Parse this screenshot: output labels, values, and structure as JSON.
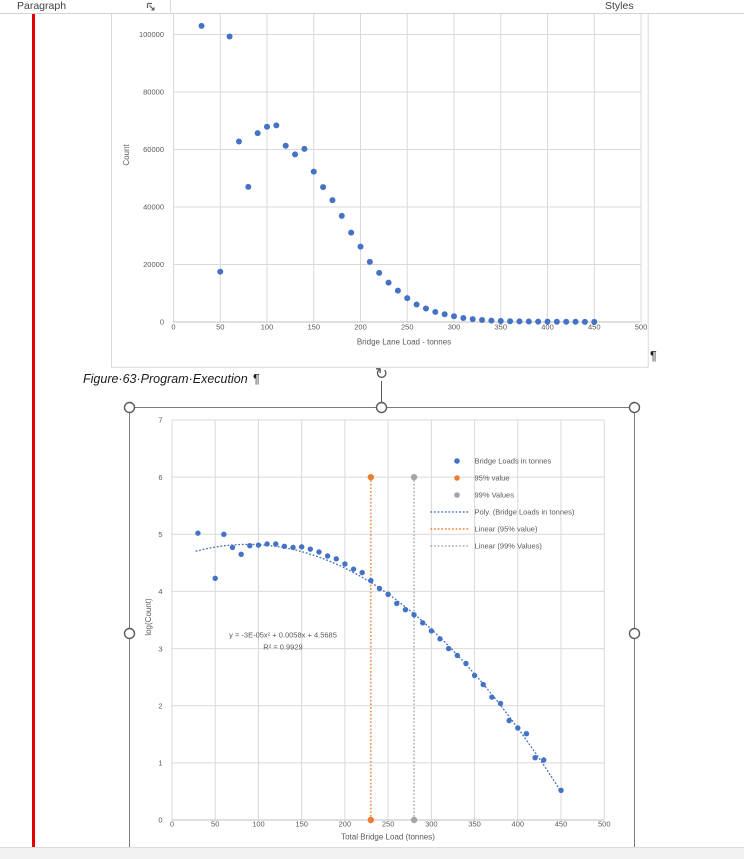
{
  "ribbon": {
    "paragraph_group_label": "Paragraph",
    "styles_group_label": "Styles"
  },
  "document": {
    "caption_text": "Figure·63·Program·Execution",
    "caption_pilcrow": "¶",
    "chart1_trailing_pilcrow": "¶"
  },
  "colors": {
    "accent_blue": "#4472C4",
    "accent_orange": "#ED7D31",
    "accent_gray": "#A5A5A5",
    "gridline": "#D9D9D9",
    "axis_line": "#BFBFBF",
    "axis_text": "#595959",
    "tracked_change_line": "#E40000",
    "selection_handle": "#595959",
    "selection_border": "#7A7A7A"
  },
  "chart_data": [
    {
      "type": "scatter",
      "title": "",
      "xlabel": "Bridge Lane Load - tonnes",
      "ylabel": "Count",
      "xlim": [
        0,
        500
      ],
      "ylim": [
        0,
        110000
      ],
      "xticks": [
        0,
        50,
        100,
        150,
        200,
        250,
        300,
        350,
        400,
        450,
        500
      ],
      "yticks": [
        0,
        20000,
        40000,
        60000,
        80000,
        100000
      ],
      "grid": true,
      "series": [
        {
          "name": "Count",
          "color": "#4472C4",
          "points": [
            [
              30,
              103000
            ],
            [
              50,
              17500
            ],
            [
              60,
              99300
            ],
            [
              70,
              62800
            ],
            [
              80,
              47000
            ],
            [
              90,
              65700
            ],
            [
              100,
              67900
            ],
            [
              110,
              68400
            ],
            [
              120,
              61300
            ],
            [
              130,
              58300
            ],
            [
              140,
              60200
            ],
            [
              150,
              52300
            ],
            [
              160,
              46900
            ],
            [
              170,
              42400
            ],
            [
              180,
              36900
            ],
            [
              190,
              31100
            ],
            [
              200,
              26200
            ],
            [
              210,
              20900
            ],
            [
              220,
              17100
            ],
            [
              230,
              13700
            ],
            [
              240,
              10900
            ],
            [
              250,
              8300
            ],
            [
              260,
              6100
            ],
            [
              270,
              4700
            ],
            [
              280,
              3500
            ],
            [
              290,
              2700
            ],
            [
              300,
              2000
            ],
            [
              310,
              1400
            ],
            [
              320,
              1000
            ],
            [
              330,
              700
            ],
            [
              340,
              500
            ],
            [
              350,
              350
            ],
            [
              360,
              260
            ],
            [
              370,
              200
            ],
            [
              380,
              160
            ],
            [
              390,
              130
            ],
            [
              400,
              110
            ],
            [
              410,
              90
            ],
            [
              420,
              80
            ],
            [
              430,
              70
            ],
            [
              440,
              60
            ],
            [
              450,
              50
            ]
          ]
        }
      ]
    },
    {
      "type": "scatter",
      "title": "",
      "xlabel": "Total Bridge Load (tonnes)",
      "ylabel": "log(Count)",
      "xlim": [
        0,
        500
      ],
      "ylim": [
        0,
        7
      ],
      "xticks": [
        0,
        50,
        100,
        150,
        200,
        250,
        300,
        350,
        400,
        450,
        500
      ],
      "yticks": [
        0,
        1,
        2,
        3,
        4,
        5,
        6,
        7
      ],
      "grid": true,
      "series": [
        {
          "name": "Bridge Loads in tonnes",
          "color": "#4472C4",
          "marker_r": 2.7,
          "points": [
            [
              30,
              5.02
            ],
            [
              50,
              4.23
            ],
            [
              60,
              5.0
            ],
            [
              70,
              4.77
            ],
            [
              80,
              4.65
            ],
            [
              90,
              4.8
            ],
            [
              100,
              4.81
            ],
            [
              110,
              4.83
            ],
            [
              120,
              4.83
            ],
            [
              130,
              4.79
            ],
            [
              140,
              4.77
            ],
            [
              150,
              4.78
            ],
            [
              160,
              4.74
            ],
            [
              170,
              4.69
            ],
            [
              180,
              4.62
            ],
            [
              190,
              4.57
            ],
            [
              200,
              4.48
            ],
            [
              210,
              4.39
            ],
            [
              220,
              4.33
            ],
            [
              230,
              4.19
            ],
            [
              240,
              4.05
            ],
            [
              250,
              3.95
            ],
            [
              260,
              3.79
            ],
            [
              270,
              3.68
            ],
            [
              280,
              3.59
            ],
            [
              290,
              3.45
            ],
            [
              300,
              3.31
            ],
            [
              310,
              3.17
            ],
            [
              320,
              3.0
            ],
            [
              330,
              2.88
            ],
            [
              340,
              2.74
            ],
            [
              350,
              2.53
            ],
            [
              360,
              2.37
            ],
            [
              370,
              2.15
            ],
            [
              380,
              2.04
            ],
            [
              390,
              1.74
            ],
            [
              400,
              1.61
            ],
            [
              410,
              1.51
            ],
            [
              420,
              1.09
            ],
            [
              430,
              1.05
            ],
            [
              450,
              0.52
            ]
          ]
        },
        {
          "name": "95% value",
          "color": "#ED7D31",
          "marker_r": 3.2,
          "points": [
            [
              230,
              6
            ],
            [
              230,
              0
            ]
          ]
        },
        {
          "name": "99% Values",
          "color": "#A5A5A5",
          "marker_r": 3.2,
          "points": [
            [
              280,
              6
            ],
            [
              280,
              0
            ]
          ]
        }
      ],
      "trendlines": [
        {
          "name": "Poly. (Bridge Loads in tonnes)",
          "color": "#4472C4",
          "style": "dotted",
          "kind": "poly",
          "coeffs": [
            -3.3e-05,
            0.0058,
            4.5685
          ],
          "x_range": [
            28,
            452
          ]
        },
        {
          "name": "Linear (95% value)",
          "color": "#ED7D31",
          "style": "dotted",
          "kind": "vertical",
          "x": 230,
          "y_range": [
            0,
            6
          ]
        },
        {
          "name": "Linear (99% Values)",
          "color": "#A5A5A5",
          "style": "dotted",
          "kind": "vertical",
          "x": 280,
          "y_range": [
            0,
            6
          ]
        }
      ],
      "legend": {
        "position": "inside-top-right",
        "entries": [
          {
            "label": "Bridge Loads in tonnes",
            "color": "#4472C4",
            "icon": "marker"
          },
          {
            "label": "95% value",
            "color": "#ED7D31",
            "icon": "marker"
          },
          {
            "label": "99% Values",
            "color": "#A5A5A5",
            "icon": "marker"
          },
          {
            "label": "Poly. (Bridge Loads in tonnes)",
            "color": "#4472C4",
            "icon": "dotted-line"
          },
          {
            "label": "Linear (95% value)",
            "color": "#ED7D31",
            "icon": "dotted-line"
          },
          {
            "label": "Linear (99% Values)",
            "color": "#A5A5A5",
            "icon": "dotted-line"
          }
        ]
      },
      "annotations": [
        {
          "text": "y = -3E-05x² + 0.0058x + 4.5685"
        },
        {
          "text": "R² = 0.9929"
        }
      ]
    }
  ]
}
